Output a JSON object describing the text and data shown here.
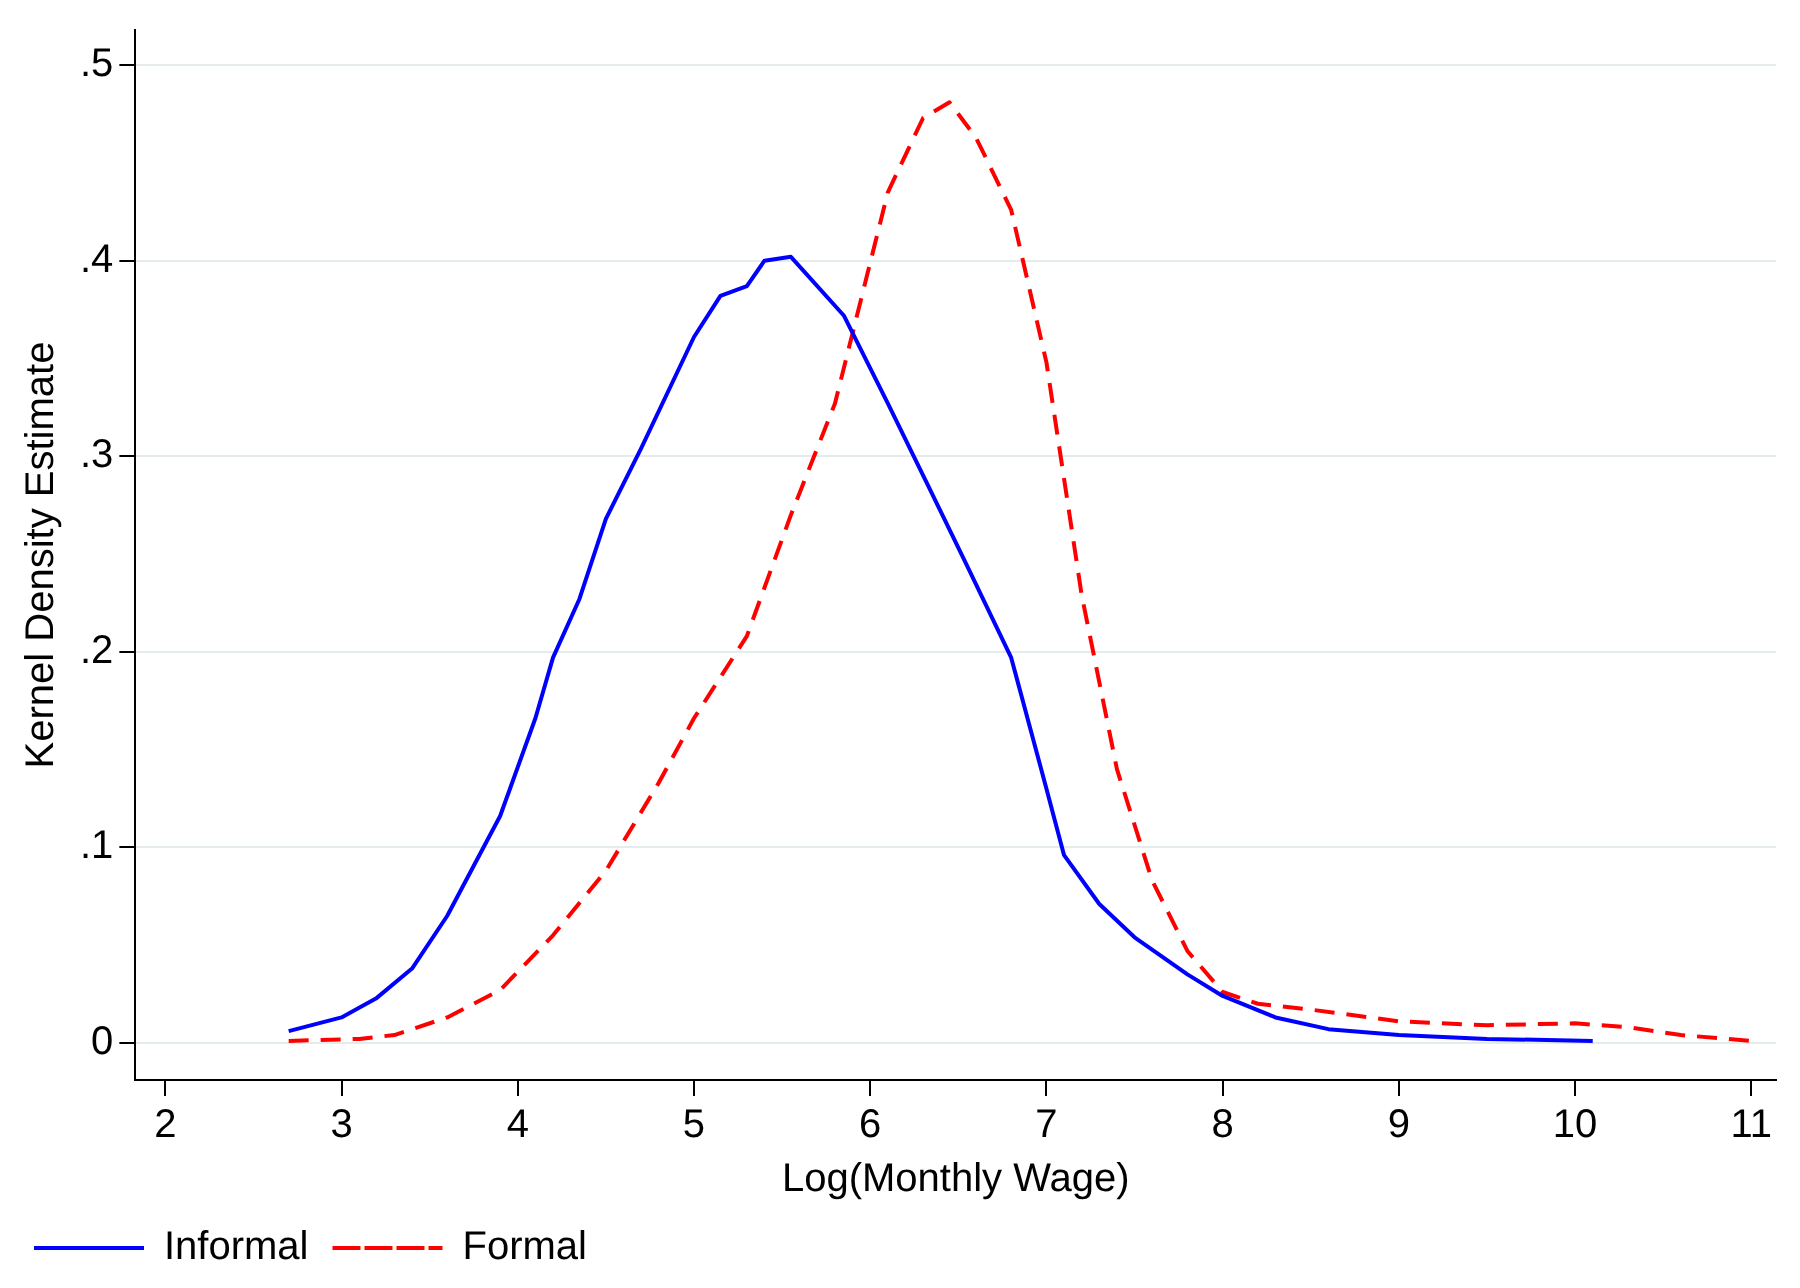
{
  "chart_data": {
    "type": "line",
    "xlabel": "Log(Monthly Wage)",
    "ylabel": "Kernel Density Estimate",
    "xlim": [
      1.83,
      11.14
    ],
    "ylim": [
      -0.019,
      0.518
    ],
    "xticks": [
      2,
      3,
      4,
      5,
      6,
      7,
      8,
      9,
      10,
      11
    ],
    "yticks": [
      {
        "value": 0,
        "label": "0"
      },
      {
        "value": 0.1,
        "label": ".1"
      },
      {
        "value": 0.2,
        "label": ".2"
      },
      {
        "value": 0.3,
        "label": ".3"
      },
      {
        "value": 0.4,
        "label": ".4"
      },
      {
        "value": 0.5,
        "label": ".5"
      }
    ],
    "grid": "y",
    "legend": "bottom",
    "marker": "none",
    "series": [
      {
        "name": "Informal",
        "color": "#0000ff",
        "line_style": "solid",
        "x": [
          2.7,
          3.0,
          3.2,
          3.4,
          3.6,
          3.9,
          4.1,
          4.2,
          4.35,
          4.5,
          4.7,
          5.0,
          5.15,
          5.3,
          5.4,
          5.55,
          5.85,
          6.1,
          6.35,
          6.55,
          6.8,
          7.0,
          7.1,
          7.3,
          7.5,
          7.8,
          8.0,
          8.3,
          8.6,
          9.0,
          9.5,
          10.1
        ],
        "values": [
          0.006,
          0.013,
          0.023,
          0.038,
          0.065,
          0.116,
          0.166,
          0.197,
          0.227,
          0.268,
          0.304,
          0.361,
          0.382,
          0.387,
          0.4,
          0.402,
          0.372,
          0.327,
          0.281,
          0.244,
          0.197,
          0.13,
          0.096,
          0.071,
          0.054,
          0.035,
          0.024,
          0.013,
          0.007,
          0.004,
          0.002,
          0.001
        ]
      },
      {
        "name": "Formal",
        "color": "#ff0000",
        "line_style": "dashed",
        "x": [
          2.7,
          3.1,
          3.3,
          3.6,
          3.9,
          4.2,
          4.5,
          4.8,
          5.0,
          5.3,
          5.55,
          5.8,
          6.1,
          6.3,
          6.45,
          6.6,
          6.8,
          7.0,
          7.2,
          7.4,
          7.6,
          7.8,
          8.0,
          8.2,
          8.5,
          9.0,
          9.5,
          10.0,
          10.3,
          10.6,
          11.0
        ],
        "values": [
          0.001,
          0.002,
          0.004,
          0.013,
          0.027,
          0.055,
          0.088,
          0.133,
          0.166,
          0.208,
          0.27,
          0.327,
          0.435,
          0.473,
          0.481,
          0.463,
          0.426,
          0.348,
          0.229,
          0.14,
          0.083,
          0.047,
          0.026,
          0.02,
          0.017,
          0.011,
          0.009,
          0.01,
          0.008,
          0.004,
          0.001
        ]
      }
    ]
  }
}
